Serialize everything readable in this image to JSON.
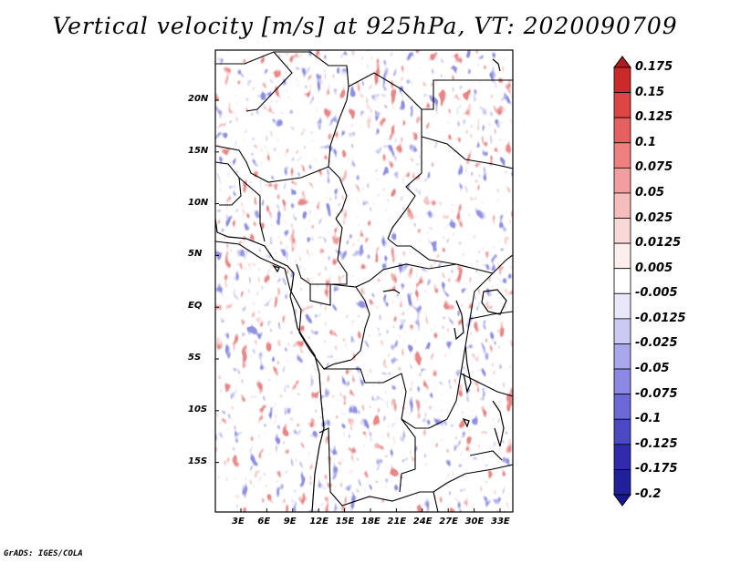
{
  "title": "Vertical velocity [m/s] at 925hPa, VT: 2020090709",
  "footer": "GrADS: IGES/COLA",
  "map": {
    "lon_range": [
      0,
      35
    ],
    "lat_range": [
      -20,
      25
    ],
    "x_ticks": [
      "3E",
      "6E",
      "9E",
      "12E",
      "15E",
      "18E",
      "21E",
      "24E",
      "27E",
      "30E",
      "33E"
    ],
    "y_ticks": [
      "20N",
      "15N",
      "10N",
      "5N",
      "EQ",
      "5S",
      "10S",
      "15S"
    ]
  },
  "colorbar": {
    "labels": [
      "0.175",
      "0.15",
      "0.125",
      "0.1",
      "0.075",
      "0.05",
      "0.025",
      "0.0125",
      "0.005",
      "-0.005",
      "-0.0125",
      "-0.025",
      "-0.05",
      "-0.075",
      "-0.1",
      "-0.125",
      "-0.175",
      "-0.2"
    ],
    "colors": [
      "#b21b1b",
      "#cc2a2a",
      "#dd4444",
      "#e66060",
      "#ee8080",
      "#f29e9e",
      "#f7bcbc",
      "#fad8d8",
      "#fdeeee",
      "#ffffff",
      "#e8e8fa",
      "#cccaf3",
      "#aaa8ec",
      "#8c89e4",
      "#6b68d8",
      "#4b48c4",
      "#2f2bac",
      "#20209a",
      "#1a1890"
    ]
  }
}
